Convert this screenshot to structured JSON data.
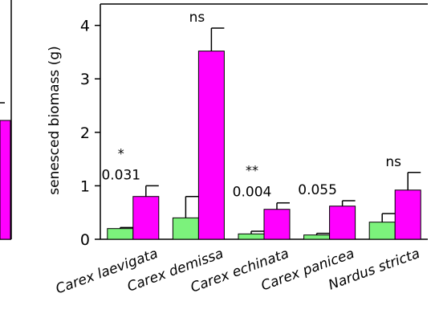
{
  "chart_data": {
    "type": "bar",
    "ylabel": "senesced biomass (g)",
    "ylim": [
      0,
      4.4
    ],
    "yticks": [
      "0",
      "1",
      "2",
      "3",
      "4"
    ],
    "categories": [
      "Carex laevigata",
      "Carex demissa",
      "Carex echinata",
      "Carex panicea",
      "Nardus stricta"
    ],
    "series": [
      {
        "values": [
          0.2,
          0.4,
          0.1,
          0.08,
          0.32
        ],
        "errors": [
          0.02,
          0.4,
          0.05,
          0.03,
          0.16
        ],
        "color": "#7cf27c"
      },
      {
        "values": [
          0.8,
          3.52,
          0.56,
          0.62,
          0.92
        ],
        "errors": [
          0.2,
          0.43,
          0.12,
          0.1,
          0.33
        ],
        "color": "#ff00ff"
      }
    ],
    "annotations": [
      {
        "category": "Carex laevigata",
        "star": "*",
        "p": "0.031"
      },
      {
        "category": "Carex demissa",
        "star": "ns",
        "p": ""
      },
      {
        "category": "Carex echinata",
        "star": "**",
        "p": "0.004"
      },
      {
        "category": "Carex panicea",
        "star": "",
        "p": "0.055"
      },
      {
        "category": "Nardus stricta",
        "star": "ns",
        "p": ""
      }
    ],
    "legend": "none",
    "grid": false
  },
  "left_panel": {
    "fill_color": "#ff00ff"
  }
}
